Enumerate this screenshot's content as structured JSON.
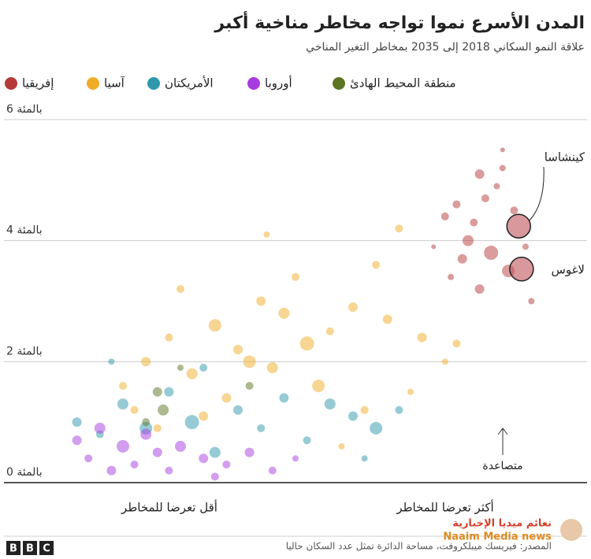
{
  "chart_data": {
    "type": "scatter",
    "title": "المدن الأسرع نموا تواجه مخاطر مناخية أكبر",
    "subtitle": "علاقة النمو السكاني 2018 إلى 2035 بمخاطر التغير المناخي",
    "ylim": [
      0,
      6
    ],
    "yticks": [
      {
        "value": 0,
        "label": "0 بالمئة"
      },
      {
        "value": 2,
        "label": "2 بالمئة"
      },
      {
        "value": 4,
        "label": "4 بالمئة"
      },
      {
        "value": 6,
        "label": "6 بالمئة"
      }
    ],
    "xlim": [
      0,
      100
    ],
    "grid": true,
    "x_labels": [
      "أقل تعرضا للمخاطر",
      "أكثر تعرضا للمخاطر"
    ],
    "rising_label": "متصاعدة",
    "source": "المصدر: فيريسك ميبلكروفت، مساحة الدائرة تمثل عدد السكان حاليا",
    "watermark": [
      "نعائم ميديا الإخبارية",
      "Naaim Media news"
    ],
    "series": [
      {
        "name": "إفريقيا",
        "color": "#b53a3a",
        "x": [
          78,
          82,
          85,
          86,
          80,
          76,
          84,
          90,
          83,
          79,
          87,
          81,
          77,
          74,
          91,
          86,
          82,
          88
        ],
        "values": [
          4.6,
          5.1,
          4.9,
          5.5,
          4.0,
          4.4,
          3.8,
          3.9,
          4.7,
          3.7,
          3.5,
          4.3,
          3.4,
          3.9,
          3.0,
          5.2,
          3.2,
          4.5
        ],
        "sizes": [
          5,
          6,
          4,
          3,
          7,
          5,
          9,
          4,
          5,
          6,
          8,
          5,
          4,
          3,
          4,
          4,
          6,
          5
        ]
      },
      {
        "name": "آسيا",
        "color": "#f0ac28",
        "x": [
          20,
          24,
          28,
          32,
          36,
          40,
          44,
          48,
          52,
          56,
          60,
          64,
          68,
          72,
          76,
          30,
          38,
          46,
          54,
          62,
          70,
          26,
          34,
          42,
          50,
          58,
          66,
          22,
          45,
          78
        ],
        "values": [
          1.6,
          2.0,
          2.4,
          1.8,
          2.6,
          2.2,
          3.0,
          2.8,
          2.3,
          2.5,
          2.9,
          3.6,
          4.2,
          2.4,
          2.0,
          3.2,
          1.4,
          1.9,
          1.6,
          1.2,
          1.5,
          0.9,
          1.1,
          2.0,
          3.4,
          0.6,
          2.7,
          1.2,
          4.1,
          2.3
        ],
        "sizes": [
          5,
          6,
          5,
          7,
          8,
          6,
          6,
          7,
          9,
          5,
          6,
          5,
          5,
          6,
          4,
          5,
          6,
          7,
          8,
          5,
          4,
          5,
          6,
          8,
          5,
          4,
          6,
          5,
          4,
          5
        ]
      },
      {
        "name": "الأمريكتان",
        "color": "#2e98ad",
        "x": [
          12,
          16,
          20,
          24,
          28,
          32,
          36,
          40,
          44,
          48,
          52,
          56,
          60,
          64,
          68,
          18,
          34,
          62
        ],
        "values": [
          1.0,
          0.8,
          1.3,
          0.9,
          1.5,
          1.0,
          0.5,
          1.2,
          0.9,
          1.4,
          0.7,
          1.3,
          1.1,
          0.9,
          1.2,
          2.0,
          1.9,
          0.4
        ],
        "sizes": [
          6,
          5,
          7,
          8,
          6,
          9,
          7,
          6,
          5,
          6,
          5,
          7,
          6,
          8,
          5,
          4,
          5,
          4
        ]
      },
      {
        "name": "أوروبا",
        "color": "#a83be0",
        "x": [
          12,
          14,
          16,
          18,
          20,
          22,
          24,
          26,
          28,
          30,
          34,
          38,
          42,
          46,
          50,
          36
        ],
        "values": [
          0.7,
          0.4,
          0.9,
          0.2,
          0.6,
          0.3,
          0.8,
          0.5,
          0.2,
          0.6,
          0.4,
          0.3,
          0.5,
          0.2,
          0.4,
          0.1
        ],
        "sizes": [
          6,
          5,
          7,
          6,
          8,
          5,
          7,
          6,
          5,
          7,
          6,
          5,
          6,
          5,
          4,
          5
        ]
      },
      {
        "name": "منطقة المحيط الهادئ",
        "color": "#5b7524",
        "x": [
          26,
          27,
          42,
          30,
          24
        ],
        "values": [
          1.5,
          1.2,
          1.6,
          1.9,
          1.0
        ],
        "sizes": [
          6,
          7,
          5,
          4,
          5
        ]
      }
    ],
    "annotations": [
      {
        "text": "كينشاسا",
        "x": 88.8,
        "y": 4.24
      },
      {
        "text": "لاغوس",
        "x": 89.3,
        "y": 3.53
      }
    ]
  }
}
